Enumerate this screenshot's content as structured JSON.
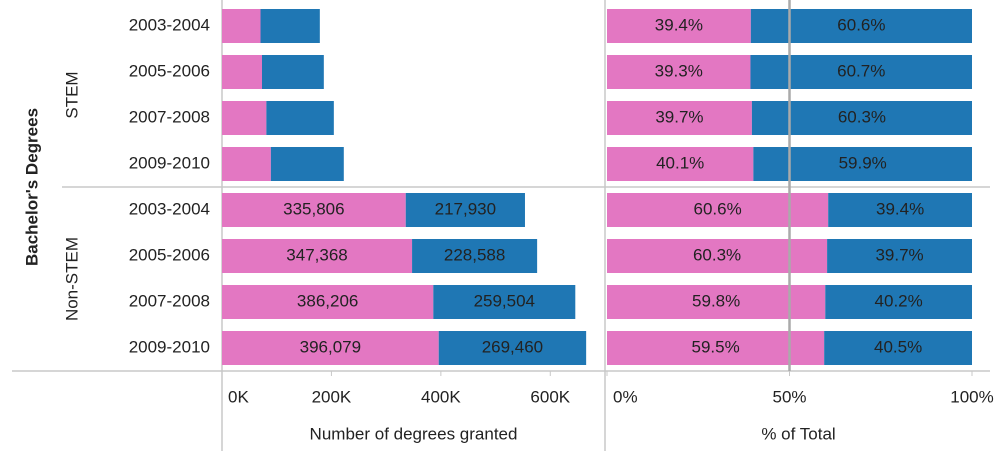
{
  "chart_data": {
    "type": "stacked_bar",
    "y_title": "Bachelor's Degrees",
    "groups": [
      "STEM",
      "Non-STEM"
    ],
    "categories": [
      [
        "2003-2004",
        "2005-2006",
        "2007-2008",
        "2009-2010"
      ],
      [
        "2003-2004",
        "2005-2006",
        "2007-2008",
        "2009-2010"
      ]
    ],
    "panels": [
      {
        "x_label": "Number of degrees granted",
        "xlim": [
          0,
          700000
        ],
        "xticks": [
          {
            "value": 0,
            "label": "0K"
          },
          {
            "value": 200000,
            "label": "200K"
          },
          {
            "value": 400000,
            "label": "400K"
          },
          {
            "value": 600000,
            "label": "600K"
          }
        ],
        "series": [
          {
            "color": "#e377c2",
            "values": [
              70400,
              73100,
              81100,
              89300,
              335806,
              347368,
              386206,
              396079
            ],
            "value_labels": [
              null,
              null,
              null,
              null,
              "335,806",
              "347,368",
              "386,206",
              "396,079"
            ]
          },
          {
            "color": "#1f77b4",
            "values": [
              108400,
              113000,
              123300,
              133300,
              217930,
              228588,
              259504,
              269460
            ],
            "value_labels": [
              null,
              null,
              null,
              null,
              "217,930",
              "228,588",
              "259,504",
              "269,460"
            ]
          }
        ]
      },
      {
        "x_label": "% of Total",
        "xlim": [
          0,
          105
        ],
        "xticks": [
          {
            "value": 0,
            "label": "0%"
          },
          {
            "value": 50,
            "label": "50%"
          },
          {
            "value": 100,
            "label": "100%"
          }
        ],
        "reference_line": 50,
        "series": [
          {
            "color": "#e377c2",
            "values": [
              39.4,
              39.3,
              39.7,
              40.1,
              60.6,
              60.3,
              59.8,
              59.5
            ],
            "value_labels": [
              "39.4%",
              "39.3%",
              "39.7%",
              "40.1%",
              "60.6%",
              "60.3%",
              "59.8%",
              "59.5%"
            ]
          },
          {
            "color": "#1f77b4",
            "values": [
              60.6,
              60.7,
              60.3,
              59.9,
              39.4,
              39.7,
              40.2,
              40.5
            ],
            "value_labels": [
              "60.6%",
              "60.7%",
              "60.3%",
              "59.9%",
              "39.4%",
              "39.7%",
              "40.2%",
              "40.5%"
            ]
          }
        ]
      }
    ]
  }
}
